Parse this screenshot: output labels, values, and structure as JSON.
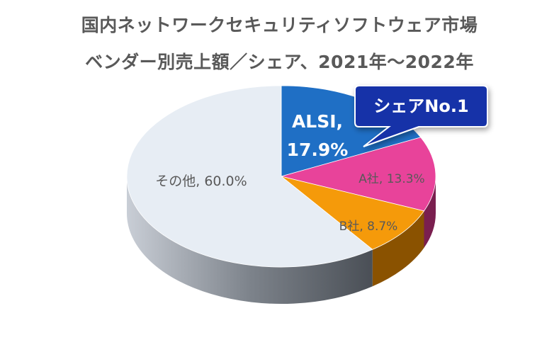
{
  "chart_data": {
    "type": "pie",
    "title": "国内ネットワークセキュリティソフトウェア市場",
    "subtitle": "ベンダー別売上額／シェア、2021年～2022年",
    "slices": [
      {
        "name": "ALSI",
        "value": 17.9,
        "label": "ALSI,",
        "value_label": "17.9%",
        "color": "#1f6fc5",
        "side_color": "#123f73"
      },
      {
        "name": "A社",
        "value": 13.3,
        "label": "A社, 13.3%",
        "color": "#e8439a",
        "side_color": "#7a1f4f"
      },
      {
        "name": "B社",
        "value": 8.7,
        "label": "B社, 8.7%",
        "color": "#f59a0a",
        "side_color": "#8a5200"
      },
      {
        "name": "その他",
        "value": 60.0,
        "label": "その他, 60.0%",
        "color": "#e7edf4",
        "side_color": "#8a8f96"
      }
    ],
    "callout": {
      "text": "シェアNo.1",
      "color": "#1232a8"
    }
  }
}
